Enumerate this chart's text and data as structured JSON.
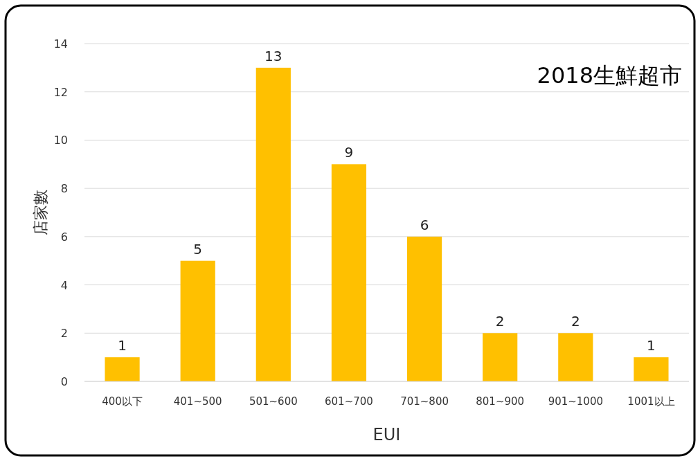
{
  "chart_data": {
    "type": "bar",
    "title": "2018生鮮超市",
    "xlabel": "EUI",
    "ylabel": "店家數",
    "categories": [
      "400以下",
      "401~500",
      "501~600",
      "601~700",
      "701~800",
      "801~900",
      "901~1000",
      "1001以上"
    ],
    "values": [
      1,
      5,
      13,
      9,
      6,
      2,
      2,
      1
    ],
    "color": "#ffc000",
    "ylim": [
      0,
      14
    ],
    "yticks": [
      0,
      2,
      4,
      6,
      8,
      10,
      12,
      14
    ],
    "grid": "y",
    "data_labels": true
  }
}
